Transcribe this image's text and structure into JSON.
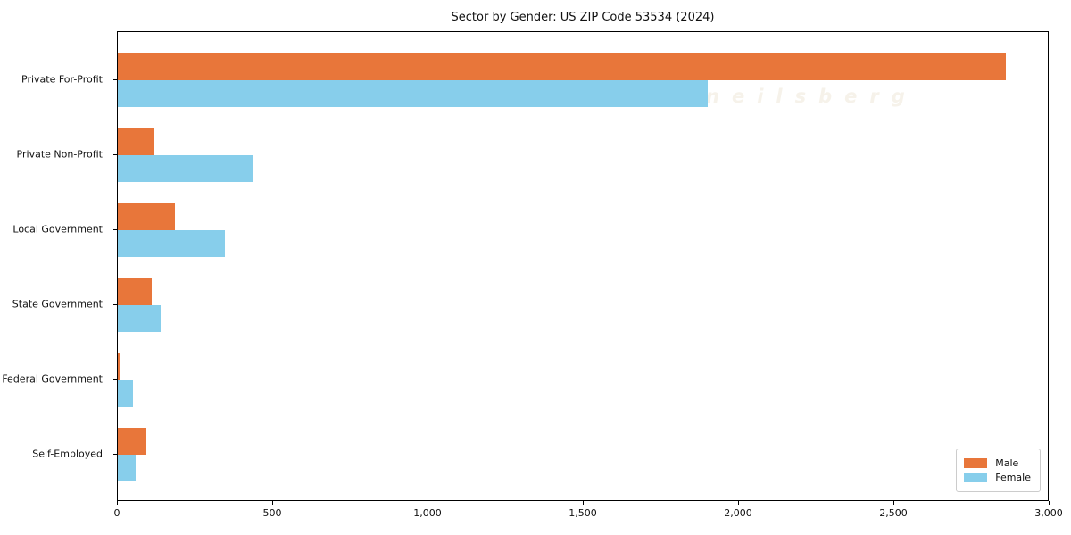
{
  "title": "Sector by Gender: US ZIP Code 53534 (2024)",
  "watermark": "neilsberg",
  "colors": {
    "male": "#e8763a",
    "female": "#87ceeb",
    "axis": "#000000",
    "legend_border": "#cccccc"
  },
  "legend": {
    "items": [
      {
        "label": "Male",
        "color_key": "male"
      },
      {
        "label": "Female",
        "color_key": "female"
      }
    ]
  },
  "chart_data": {
    "type": "bar",
    "orientation": "horizontal",
    "title": "Sector by Gender: US ZIP Code 53534 (2024)",
    "xlabel": "",
    "ylabel": "",
    "categories": [
      "Private For-Profit",
      "Private Non-Profit",
      "Local Government",
      "State Government",
      "Federal Government",
      "Self-Employed"
    ],
    "series": [
      {
        "name": "Male",
        "color": "#e8763a",
        "values": [
          2860,
          117,
          184,
          108,
          9,
          92
        ]
      },
      {
        "name": "Female",
        "color": "#87ceeb",
        "values": [
          1900,
          435,
          344,
          138,
          48,
          57
        ]
      }
    ],
    "xlim": [
      0,
      3000
    ],
    "xticks": [
      0,
      500,
      1000,
      1500,
      2000,
      2500,
      3000
    ],
    "xtick_labels": [
      "0",
      "500",
      "1,000",
      "1,500",
      "2,000",
      "2,500",
      "3,000"
    ],
    "grid": false,
    "legend_position": "lower right"
  }
}
